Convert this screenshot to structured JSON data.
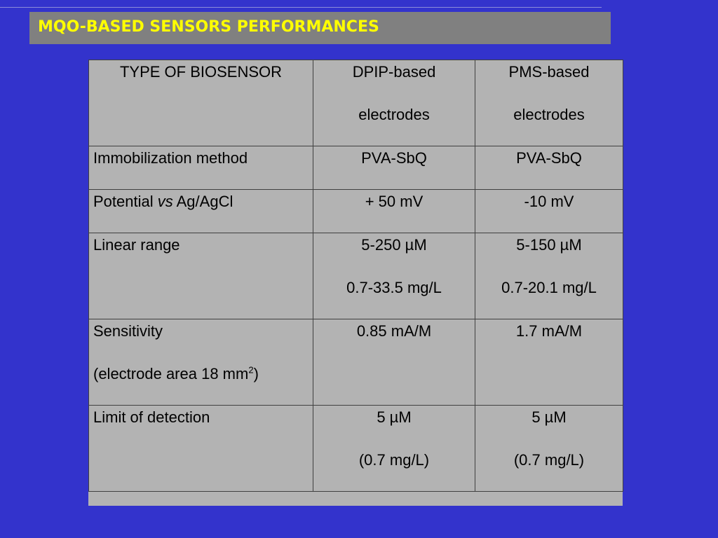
{
  "slide": {
    "title": "MQO-BASED SENSORS PERFORMANCES"
  },
  "table": {
    "header": {
      "col1": "TYPE OF BIOSENSOR",
      "col2_line1": "DPIP-based",
      "col2_line2": "electrodes",
      "col3_line1": "PMS-based",
      "col3_line2": "electrodes"
    },
    "rows": {
      "immobilization": {
        "label": "Immobilization method",
        "dpip": "PVA-SbQ",
        "pms": "PVA-SbQ"
      },
      "potential": {
        "label_pre": "Potential ",
        "label_em": "vs",
        "label_post": " Ag/AgCl",
        "dpip": "+ 50 mV",
        "pms": "-10 mV"
      },
      "linear_range": {
        "label": "Linear range",
        "dpip_line1": "5-250 µM",
        "dpip_line2": "0.7-33.5 mg/L",
        "pms_line1": "5-150 µM",
        "pms_line2": "0.7-20.1 mg/L"
      },
      "sensitivity": {
        "label_line1": "Sensitivity",
        "label_line2_pre": "(electrode area 18 mm",
        "label_line2_sup": "2",
        "label_line2_post": ")",
        "dpip": "0.85 mA/M",
        "pms": "1.7 mA/M"
      },
      "lod": {
        "label": "Limit of detection",
        "dpip_line1": "5 µM",
        "dpip_line2": "(0.7 mg/L)",
        "pms_line1": "5 µM",
        "pms_line2": "(0.7 mg/L)"
      }
    }
  },
  "colors": {
    "background": "#3333cc",
    "title_bar": "#808080",
    "title_text": "#ffff00",
    "table_fill": "#b3b3b3"
  }
}
